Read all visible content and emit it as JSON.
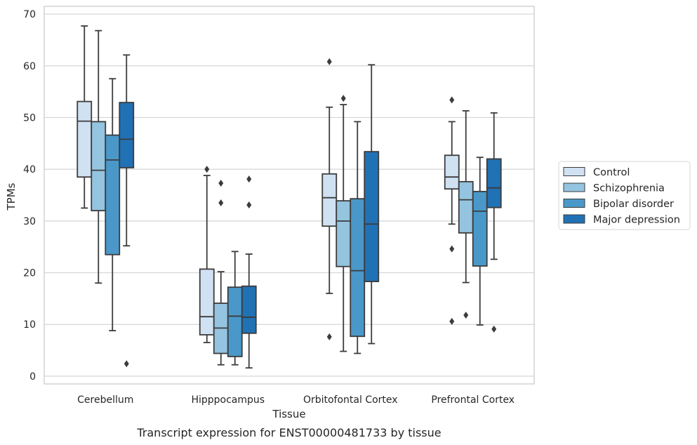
{
  "chart_data": {
    "type": "box",
    "title": "",
    "caption": "Transcript expression for ENST00000481733 by tissue",
    "xlabel": "Tissue",
    "ylabel": "TPMs",
    "ylim": [
      -1.5,
      71.5
    ],
    "yticks": [
      0,
      10,
      20,
      30,
      40,
      50,
      60,
      70
    ],
    "grid": "horizontal",
    "legend_position": "right",
    "categories": [
      "Cerebellum",
      "Hipppocampus",
      "Orbitofontal Cortex",
      "Prefrontal Cortex"
    ],
    "series": [
      {
        "name": "Control",
        "color": "#d0e1f2",
        "boxes": [
          {
            "whisker_low": 32.5,
            "q1": 38.5,
            "median": 49.3,
            "q3": 53.1,
            "whisker_high": 67.7,
            "outliers": []
          },
          {
            "whisker_low": 6.5,
            "q1": 8.0,
            "median": 11.5,
            "q3": 20.7,
            "whisker_high": 38.8,
            "outliers": [
              40.0
            ]
          },
          {
            "whisker_low": 16.0,
            "q1": 29.0,
            "median": 34.5,
            "q3": 39.1,
            "whisker_high": 52.0,
            "outliers": [
              60.8,
              7.6
            ]
          },
          {
            "whisker_low": 29.4,
            "q1": 36.2,
            "median": 38.5,
            "q3": 42.7,
            "whisker_high": 49.2,
            "outliers": [
              53.4,
              24.6,
              10.6
            ]
          }
        ]
      },
      {
        "name": "Schizophrenia",
        "color": "#94c4df",
        "boxes": [
          {
            "whisker_low": 18.0,
            "q1": 32.0,
            "median": 39.8,
            "q3": 49.2,
            "whisker_high": 66.8,
            "outliers": []
          },
          {
            "whisker_low": 2.2,
            "q1": 4.4,
            "median": 9.3,
            "q3": 14.1,
            "whisker_high": 20.2,
            "outliers": [
              37.3,
              33.5
            ]
          },
          {
            "whisker_low": 4.8,
            "q1": 21.2,
            "median": 30.0,
            "q3": 33.9,
            "whisker_high": 52.5,
            "outliers": [
              53.7
            ]
          },
          {
            "whisker_low": 18.1,
            "q1": 27.7,
            "median": 34.1,
            "q3": 37.6,
            "whisker_high": 51.3,
            "outliers": [
              11.8
            ]
          }
        ]
      },
      {
        "name": "Bipolar disorder",
        "color": "#4a98c9",
        "boxes": [
          {
            "whisker_low": 8.8,
            "q1": 23.5,
            "median": 41.8,
            "q3": 46.6,
            "whisker_high": 57.5,
            "outliers": []
          },
          {
            "whisker_low": 2.2,
            "q1": 3.8,
            "median": 11.6,
            "q3": 17.2,
            "whisker_high": 24.1,
            "outliers": []
          },
          {
            "whisker_low": 4.4,
            "q1": 7.7,
            "median": 20.4,
            "q3": 34.3,
            "whisker_high": 49.2,
            "outliers": []
          },
          {
            "whisker_low": 9.9,
            "q1": 21.3,
            "median": 31.9,
            "q3": 35.7,
            "whisker_high": 42.3,
            "outliers": []
          }
        ]
      },
      {
        "name": "Major depression",
        "color": "#2171b5",
        "boxes": [
          {
            "whisker_low": 25.2,
            "q1": 40.3,
            "median": 45.8,
            "q3": 52.9,
            "whisker_high": 62.1,
            "outliers": [
              2.4
            ]
          },
          {
            "whisker_low": 1.6,
            "q1": 8.3,
            "median": 11.4,
            "q3": 17.4,
            "whisker_high": 23.6,
            "outliers": [
              38.1,
              33.1
            ]
          },
          {
            "whisker_low": 6.3,
            "q1": 18.3,
            "median": 29.4,
            "q3": 43.4,
            "whisker_high": 60.2,
            "outliers": []
          },
          {
            "whisker_low": 22.6,
            "q1": 32.6,
            "median": 36.4,
            "q3": 42.0,
            "whisker_high": 50.9,
            "outliers": [
              9.1
            ]
          }
        ]
      }
    ]
  }
}
